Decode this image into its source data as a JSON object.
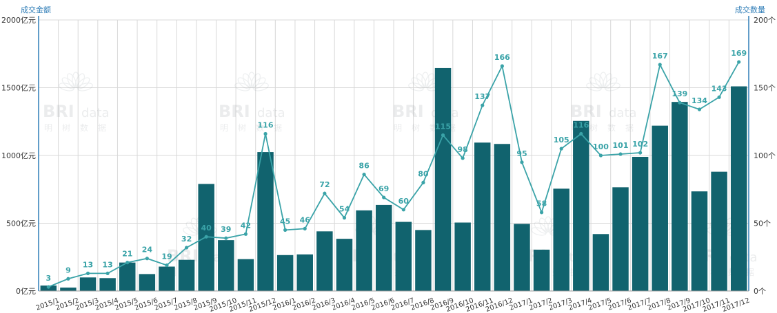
{
  "chart_data": {
    "type": "bar+line",
    "categories": [
      "2015/1",
      "2015/2",
      "2015/3",
      "2015/4",
      "2015/5",
      "2015/6",
      "2015/7",
      "2015/8",
      "2015/9",
      "2015/10",
      "2015/11",
      "2015/12",
      "2016/1",
      "2016/2",
      "2016/3",
      "2016/4",
      "2016/5",
      "2016/6",
      "2016/7",
      "2016/8",
      "2016/9",
      "2016/10",
      "2016/11",
      "2016/12",
      "2017/1",
      "2017/2",
      "2017/3",
      "2017/4",
      "2017/5",
      "2017/6",
      "2017/7",
      "2017/8",
      "2017/9",
      "2017/10",
      "2017/11",
      "2017/12"
    ],
    "left_axis": {
      "title": "成交金额",
      "unit": "亿元",
      "ylim": [
        0,
        2000
      ],
      "ticks": [
        0,
        500,
        1000,
        1500,
        2000
      ],
      "tick_labels": [
        "0亿元",
        "500亿元",
        "1000亿元",
        "1500亿元",
        "2000亿元"
      ]
    },
    "right_axis": {
      "title": "成交数量",
      "unit": "个",
      "ylim": [
        0,
        200
      ],
      "ticks": [
        0,
        50,
        100,
        150,
        200
      ],
      "tick_labels": [
        "0个",
        "50个",
        "100个",
        "150个",
        "200个"
      ]
    },
    "series": [
      {
        "type": "bar",
        "axis": "left",
        "color": "#11636e",
        "values": [
          40,
          25,
          100,
          95,
          210,
          125,
          180,
          230,
          790,
          375,
          235,
          1025,
          265,
          270,
          440,
          385,
          595,
          635,
          510,
          450,
          1645,
          505,
          1095,
          1085,
          495,
          305,
          755,
          1255,
          420,
          765,
          990,
          1220,
          1395,
          735,
          880,
          1510
        ]
      },
      {
        "type": "line",
        "axis": "right",
        "color": "#3aa3a8",
        "values": [
          3,
          9,
          13,
          13,
          21,
          24,
          19,
          32,
          40,
          39,
          42,
          116,
          45,
          46,
          72,
          54,
          86,
          69,
          60,
          80,
          115,
          98,
          137,
          166,
          95,
          58,
          105,
          116,
          100,
          101,
          102,
          167,
          139,
          134,
          143,
          169
        ]
      }
    ],
    "grid": true,
    "colors": {
      "axis": "#2f7db7",
      "grid": "#d8d8d8",
      "bar": "#11636e",
      "line": "#3aa3a8",
      "label": "#3aa3a8"
    }
  },
  "watermark": {
    "logo": "BRI",
    "word": "data",
    "chars": [
      "明",
      "树",
      "数",
      "据"
    ]
  }
}
